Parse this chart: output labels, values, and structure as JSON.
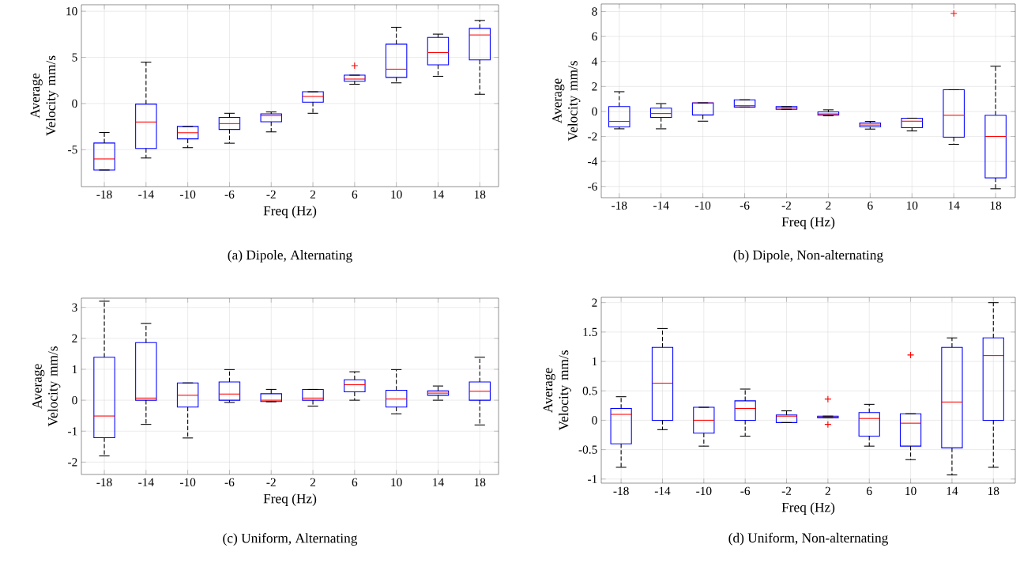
{
  "chart_data": [
    {
      "type": "box",
      "title": "(a) Dipole, Alternating",
      "xlabel": "Freq (Hz)",
      "ylabel": "Average Velocity mm/s",
      "grid": true,
      "categories": [
        "-18",
        "-14",
        "-10",
        "-6",
        "-2",
        "2",
        "6",
        "10",
        "14",
        "18"
      ],
      "ylim": [
        -9,
        10.7
      ],
      "yticks": [
        -5,
        0,
        5,
        10
      ],
      "boxes": [
        {
          "low": -7.2,
          "q1": -7.2,
          "median": -6.0,
          "q3": -4.28,
          "high": -3.13
        },
        {
          "low": -5.9,
          "q1": -4.87,
          "median": -2.0,
          "q3": -0.06,
          "high": 4.48
        },
        {
          "low": -4.78,
          "q1": -3.83,
          "median": -3.16,
          "q3": -2.48,
          "high": -2.48
        },
        {
          "low": -4.3,
          "q1": -2.8,
          "median": -2.18,
          "q3": -1.5,
          "high": -1.06
        },
        {
          "low": -3.07,
          "q1": -1.98,
          "median": -1.3,
          "q3": -1.12,
          "high": -0.91
        },
        {
          "low": -1.06,
          "q1": 0.15,
          "median": 0.77,
          "q3": 1.27,
          "high": 1.27
        },
        {
          "low": 2.09,
          "q1": 2.42,
          "median": 2.65,
          "q3": 3.07,
          "high": 3.07,
          "outliers": [
            4.1
          ]
        },
        {
          "low": 2.24,
          "q1": 2.83,
          "median": 3.72,
          "q3": 6.43,
          "high": 8.26
        },
        {
          "low": 2.95,
          "q1": 4.19,
          "median": 5.52,
          "q3": 7.17,
          "high": 7.52
        },
        {
          "low": 1.0,
          "q1": 4.72,
          "median": 7.43,
          "q3": 8.14,
          "high": 9.0
        }
      ]
    },
    {
      "type": "box",
      "title": "(b) Dipole, Non-alternating",
      "xlabel": "Freq (Hz)",
      "ylabel": "Average Velocity mm/s",
      "grid": true,
      "categories": [
        "-18",
        "-14",
        "-10",
        "-6",
        "-2",
        "2",
        "6",
        "10",
        "14",
        "18"
      ],
      "ylim": [
        -6.9,
        8.6
      ],
      "yticks": [
        -6,
        -4,
        -2,
        0,
        2,
        4,
        6,
        8
      ],
      "boxes": [
        {
          "low": -1.39,
          "q1": -1.24,
          "median": -0.8,
          "q3": 0.39,
          "high": 1.58
        },
        {
          "low": -1.39,
          "q1": -0.48,
          "median": -0.17,
          "q3": 0.26,
          "high": 0.63
        },
        {
          "low": -0.78,
          "q1": -0.28,
          "median": 0.67,
          "q3": 0.69,
          "high": 0.69
        },
        {
          "low": 0.35,
          "q1": 0.35,
          "median": 0.46,
          "q3": 0.93,
          "high": 0.93
        },
        {
          "low": 0.17,
          "q1": 0.17,
          "median": 0.28,
          "q3": 0.39,
          "high": 0.39
        },
        {
          "low": -0.35,
          "q1": -0.28,
          "median": -0.2,
          "q3": -0.04,
          "high": 0.13
        },
        {
          "low": -1.41,
          "q1": -1.22,
          "median": -1.09,
          "q3": -0.93,
          "high": -0.8
        },
        {
          "low": -1.56,
          "q1": -1.3,
          "median": -0.78,
          "q3": -0.54,
          "high": -0.54
        },
        {
          "low": -2.63,
          "q1": -2.06,
          "median": -0.3,
          "q3": 1.74,
          "high": 1.74,
          "outliers": [
            7.84
          ]
        },
        {
          "low": -6.19,
          "q1": -5.32,
          "median": -2.0,
          "q3": -0.3,
          "high": 3.62
        }
      ]
    },
    {
      "type": "box",
      "title": "(c) Uniform, Alternating",
      "xlabel": "Freq (Hz)",
      "ylabel": "Average Velocity mm/s",
      "grid": true,
      "categories": [
        "-18",
        "-14",
        "-10",
        "-6",
        "-2",
        "2",
        "6",
        "10",
        "14",
        "18"
      ],
      "ylim": [
        -2.4,
        3.3
      ],
      "yticks": [
        -2,
        -1,
        0,
        1,
        2,
        3
      ],
      "boxes": [
        {
          "low": -1.8,
          "q1": -1.21,
          "median": -0.51,
          "q3": 1.39,
          "high": 3.2
        },
        {
          "low": -0.78,
          "q1": 0,
          "median": 0.07,
          "q3": 1.86,
          "high": 2.48
        },
        {
          "low": -1.22,
          "q1": -0.22,
          "median": 0.16,
          "q3": 0.56,
          "high": 0.56
        },
        {
          "low": -0.07,
          "q1": 0,
          "median": 0.2,
          "q3": 0.59,
          "high": 0.99
        },
        {
          "low": -0.05,
          "q1": -0.04,
          "median": 0,
          "q3": 0.21,
          "high": 0.35
        },
        {
          "low": -0.19,
          "q1": 0,
          "median": 0.07,
          "q3": 0.35,
          "high": 0.35
        },
        {
          "low": 0,
          "q1": 0.27,
          "median": 0.5,
          "q3": 0.66,
          "high": 0.92
        },
        {
          "low": -0.44,
          "q1": -0.22,
          "median": 0.04,
          "q3": 0.32,
          "high": 0.99
        },
        {
          "low": 0,
          "q1": 0.16,
          "median": 0.23,
          "q3": 0.3,
          "high": 0.46
        },
        {
          "low": -0.8,
          "q1": 0,
          "median": 0.29,
          "q3": 0.59,
          "high": 1.39
        }
      ]
    },
    {
      "type": "box",
      "title": "(d) Uniform, Non-alternating",
      "xlabel": "Freq (Hz)",
      "ylabel": "Average Velocity mm/s",
      "grid": true,
      "categories": [
        "-18",
        "-14",
        "-10",
        "-6",
        "-2",
        "2",
        "6",
        "10",
        "14",
        "18"
      ],
      "ylim": [
        -1.07,
        2.09
      ],
      "yticks": [
        -1,
        -0.5,
        0,
        0.5,
        1,
        1.5,
        2
      ],
      "boxes": [
        {
          "low": -0.8,
          "q1": -0.4,
          "median": 0.1,
          "q3": 0.2,
          "high": 0.4
        },
        {
          "low": -0.16,
          "q1": 0,
          "median": 0.63,
          "q3": 1.24,
          "high": 1.56
        },
        {
          "low": -0.44,
          "q1": -0.22,
          "median": 0,
          "q3": 0.22,
          "high": 0.22
        },
        {
          "low": -0.27,
          "q1": 0,
          "median": 0.2,
          "q3": 0.33,
          "high": 0.53
        },
        {
          "low": -0.04,
          "q1": -0.04,
          "median": 0.07,
          "q3": 0.09,
          "high": 0.16
        },
        {
          "low": 0.04,
          "q1": 0.04,
          "median": 0.05,
          "q3": 0.07,
          "high": 0.07,
          "outliers": [
            0.36,
            -0.07
          ]
        },
        {
          "low": -0.44,
          "q1": -0.27,
          "median": 0.03,
          "q3": 0.13,
          "high": 0.27
        },
        {
          "low": -0.67,
          "q1": -0.44,
          "median": -0.05,
          "q3": 0.11,
          "high": 0.11,
          "outliers": [
            1.11
          ]
        },
        {
          "low": -0.93,
          "q1": -0.47,
          "median": 0.31,
          "q3": 1.24,
          "high": 1.4
        },
        {
          "low": -0.8,
          "q1": 0,
          "median": 1.1,
          "q3": 1.4,
          "high": 2.0
        }
      ]
    }
  ]
}
